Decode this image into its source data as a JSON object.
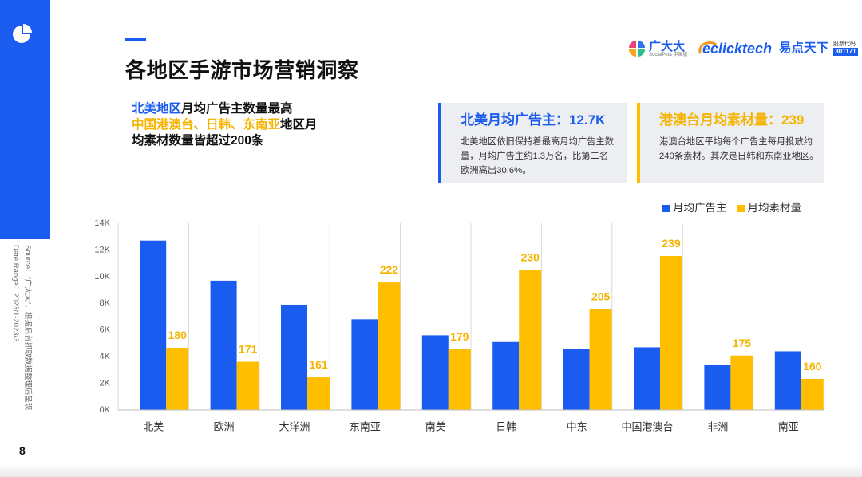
{
  "colors": {
    "brand_blue": "#1a5cf0",
    "accent_orange": "#ffbf00",
    "orange_text": "#f5b400",
    "card_bg": "#eceef1"
  },
  "slide": {
    "page_number": "8",
    "title": "各地区手游市场营销洞察",
    "source": "Source：“广大大”，根据后台抓取数据整理后呈现",
    "date_range": "Date Range：2023/1-2023/3",
    "logo_icon": "pie-chart-icon"
  },
  "header_logos": {
    "socialpeta_icon": "four-petal-logo-icon",
    "socialpeta_name": "广大大",
    "socialpeta_sub": "SocialPeta 中国版",
    "eclick_icon": "swoosh-logo-icon",
    "eclick_name": "eclicktech",
    "eclick_cn": "易点天下",
    "stock_label": "股票代码",
    "stock_code": "301171"
  },
  "summary": {
    "line1_highlight": "北美地区",
    "line1_rest": "月均广告主数量最高",
    "line2_highlight": "中国港澳台、日韩、东南亚",
    "line2_rest": "地区月",
    "line3": "均素材数量皆超过200条"
  },
  "cards": [
    {
      "title": "北美月均广告主：12.7K",
      "lines": [
        "北美地区依旧保持着最高月均广告主数",
        "量，月均广告主约1.3万名，比第二名",
        "欧洲高出30.6%。"
      ]
    },
    {
      "title": "港澳台月均素材量：239",
      "lines": [
        "港澳台地区平均每个广告主每月投放约",
        "240条素材。其次是日韩和东南亚地区。"
      ]
    }
  ],
  "chart_data": {
    "type": "bar",
    "categories": [
      "北美",
      "欧洲",
      "大洋洲",
      "东南亚",
      "南美",
      "日韩",
      "中东",
      "中国港澳台",
      "非洲",
      "南亚"
    ],
    "series": [
      {
        "name": "月均广告主",
        "axis": "left",
        "color": "#1a5cf0",
        "values": [
          12.7,
          9.7,
          7.9,
          6.8,
          5.6,
          5.1,
          4.6,
          4.7,
          3.4,
          4.4
        ]
      },
      {
        "name": "月均素材量",
        "axis": "right",
        "color": "#ffbf00",
        "values": [
          180,
          171,
          161,
          222,
          179,
          230,
          205,
          239,
          175,
          160
        ]
      }
    ],
    "y_ticks": [
      0,
      2,
      4,
      6,
      8,
      10,
      12,
      14
    ],
    "y_tick_labels": [
      "0K",
      "2K",
      "4K",
      "6K",
      "8K",
      "10K",
      "12K",
      "14K"
    ],
    "ylim": [
      0,
      14
    ],
    "y2lim": [
      140,
      260
    ],
    "y2_axis_visible": false,
    "legend": "top-right",
    "grid": "vertical"
  }
}
